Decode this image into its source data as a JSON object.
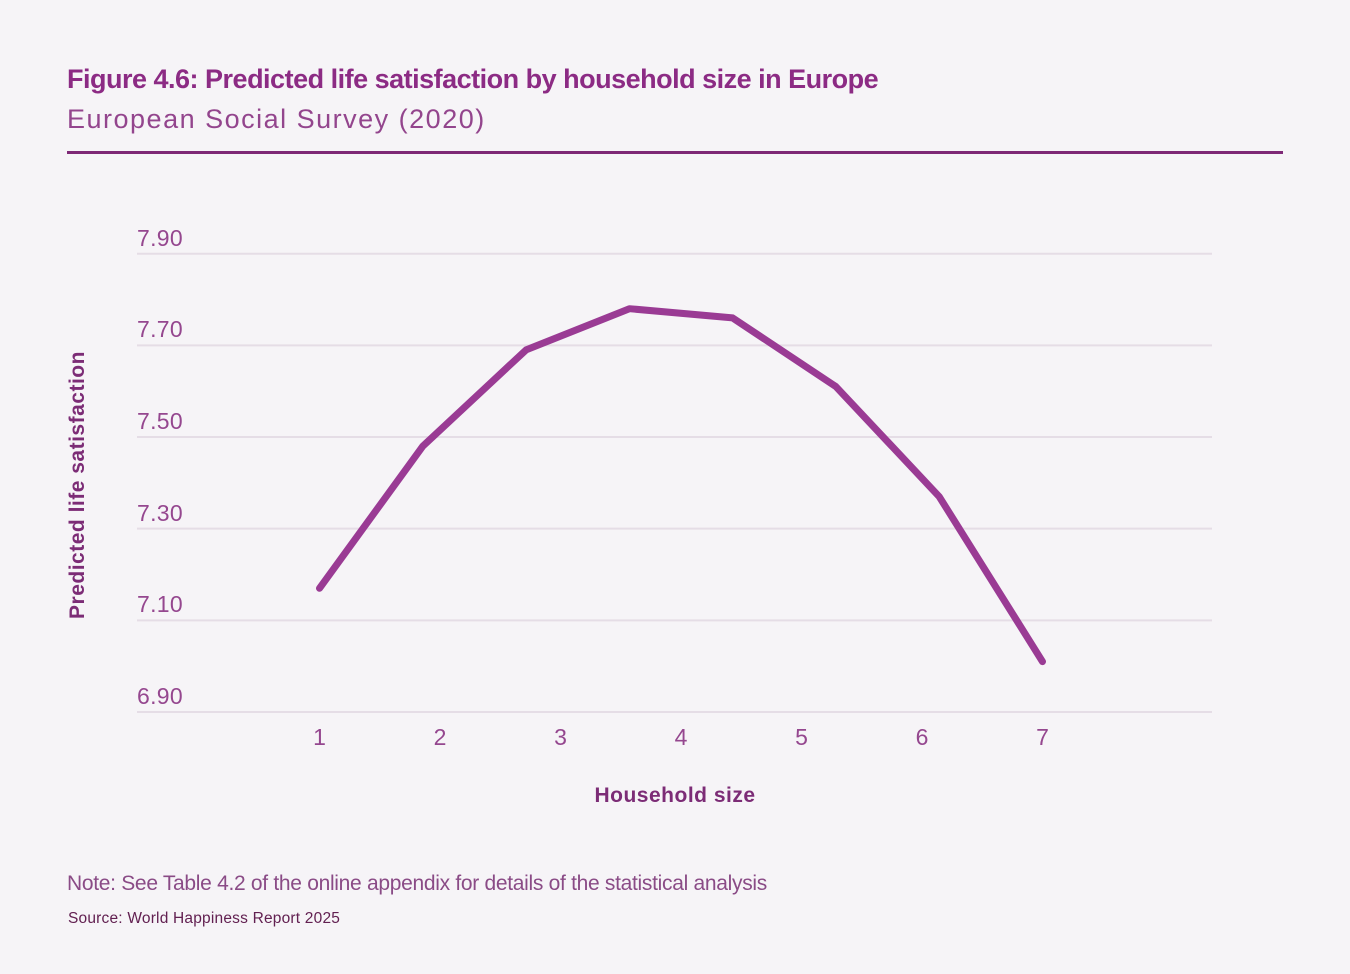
{
  "figure": {
    "title": "Figure 4.6: Predicted life satisfaction by household size in Europe",
    "subtitle": "European Social Survey (2020)",
    "note": "Note: See Table 4.2 of the online appendix for details of the statistical analysis",
    "source": "Source: World Happiness Report 2025"
  },
  "chart_data": {
    "type": "line",
    "title": "Predicted life satisfaction by household size in Europe",
    "xlabel": "Household size",
    "ylabel": "Predicted life satisfaction",
    "x_tick_labels": [
      "1",
      "2",
      "3",
      "4",
      "5",
      "6",
      "7"
    ],
    "y_tick_labels": [
      "7.90",
      "7.70",
      "7.50",
      "7.30",
      "7.10",
      "6.90"
    ],
    "y_tick_values": [
      7.9,
      7.7,
      7.5,
      7.3,
      7.1,
      6.9
    ],
    "ylim": [
      6.9,
      7.9
    ],
    "grid": "horizontal-only",
    "legend": "none",
    "series": [
      {
        "name": "Predicted life satisfaction",
        "x": [
          1,
          1.86,
          2.71,
          3.57,
          4.43,
          5.29,
          6.14,
          7
        ],
        "values": [
          7.17,
          7.48,
          7.69,
          7.78,
          7.76,
          7.61,
          7.37,
          7.01
        ]
      }
    ]
  },
  "colors": {
    "background": "#F6F4F7",
    "title_text": "#8C2B84",
    "subtitle_text": "#93458D",
    "divider": "#7E2876",
    "gridline": "#E5DDE6",
    "tick_label": "#95478F",
    "axis_title": "#7C2C76",
    "series_line": "#9A3B94",
    "note_text": "#8A4B86",
    "source_text": "#622051"
  }
}
